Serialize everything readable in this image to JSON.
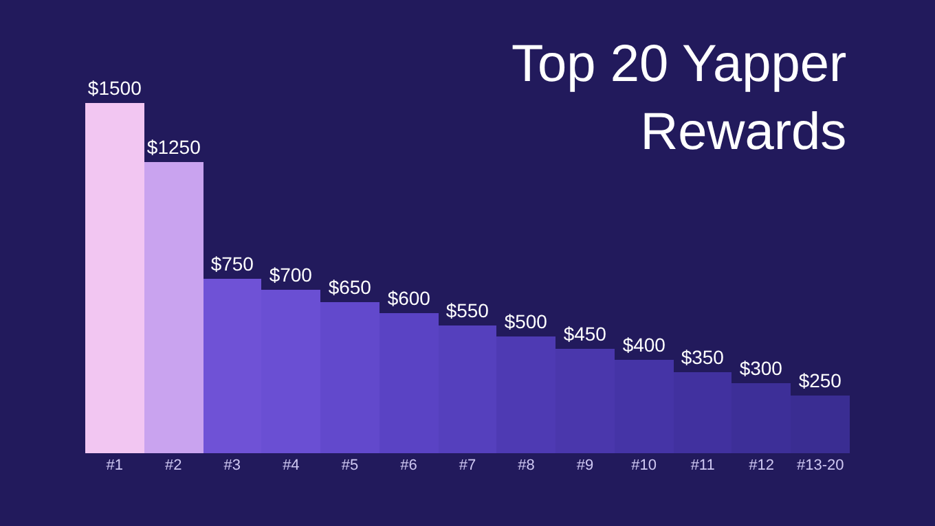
{
  "chart_data": {
    "type": "bar",
    "title": "Top 20 Yapper Rewards",
    "categories": [
      "#1",
      "#2",
      "#3",
      "#4",
      "#5",
      "#6",
      "#7",
      "#8",
      "#9",
      "#10",
      "#11",
      "#12",
      "#13-20"
    ],
    "values": [
      1500,
      1250,
      750,
      700,
      650,
      600,
      550,
      500,
      450,
      400,
      350,
      300,
      250
    ],
    "value_labels": [
      "$1500",
      "$1250",
      "$750",
      "$700",
      "$650",
      "$600",
      "$550",
      "$500",
      "$450",
      "$400",
      "$350",
      "$300",
      "$250"
    ],
    "colors": [
      "#f2c6f2",
      "#c9a3ef",
      "#6f52d6",
      "#6a4fd3",
      "#6249cc",
      "#5a43c4",
      "#5540bd",
      "#4e3ab3",
      "#4a37ac",
      "#4534a6",
      "#41319f",
      "#3d2f98",
      "#3a2d92"
    ],
    "grid": false,
    "legend": false
  }
}
